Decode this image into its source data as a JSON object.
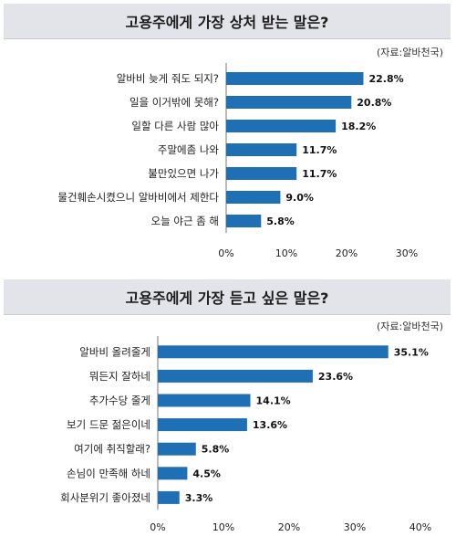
{
  "chart_data": [
    {
      "type": "bar",
      "orientation": "horizontal",
      "title": "고용주에게 가장 상처 받는 말은?",
      "source": "(자료:알바천국)",
      "categories": [
        "알바비 늦게 줘도 되지?",
        "일을 이거밖에 못해?",
        "일할 다른 사람 많아",
        "주말에좀 나와",
        "불만있으면 나가",
        "물건훼손시켰으니 알바비에서 제한다",
        "오늘 야근 좀 해"
      ],
      "values": [
        22.8,
        20.8,
        18.2,
        11.7,
        11.7,
        9.0,
        5.8
      ],
      "value_labels": [
        "22.8%",
        "20.8%",
        "18.2%",
        "11.7%",
        "11.7%",
        "9.0%",
        "5.8%"
      ],
      "xlim": [
        0,
        30
      ],
      "ticks": [
        0,
        10,
        20,
        30
      ],
      "tick_labels": [
        "0%",
        "10%",
        "20%",
        "30%"
      ],
      "grid": false
    },
    {
      "type": "bar",
      "orientation": "horizontal",
      "title": "고용주에게 가장 듣고 싶은 말은?",
      "source": "(자료:알바천국)",
      "categories": [
        "알바비 올려줄게",
        "뭐든지 잘하네",
        "추가수당 줄게",
        "보기 드문 젊은이네",
        "여기에 취직할래?",
        "손님이 만족해 하네",
        "회사분위기 좋아졌네"
      ],
      "values": [
        35.1,
        23.6,
        14.1,
        13.6,
        5.8,
        4.5,
        3.3
      ],
      "value_labels": [
        "35.1%",
        "23.6%",
        "14.1%",
        "13.6%",
        "5.8%",
        "4.5%",
        "3.3%"
      ],
      "xlim": [
        0,
        40
      ],
      "ticks": [
        0,
        10,
        20,
        30,
        40
      ],
      "tick_labels": [
        "0%",
        "10%",
        "20%",
        "30%",
        "40%"
      ],
      "grid": false
    }
  ],
  "colors": {
    "bar": "#1f6fb5",
    "title_band": "#e3e3ea"
  }
}
